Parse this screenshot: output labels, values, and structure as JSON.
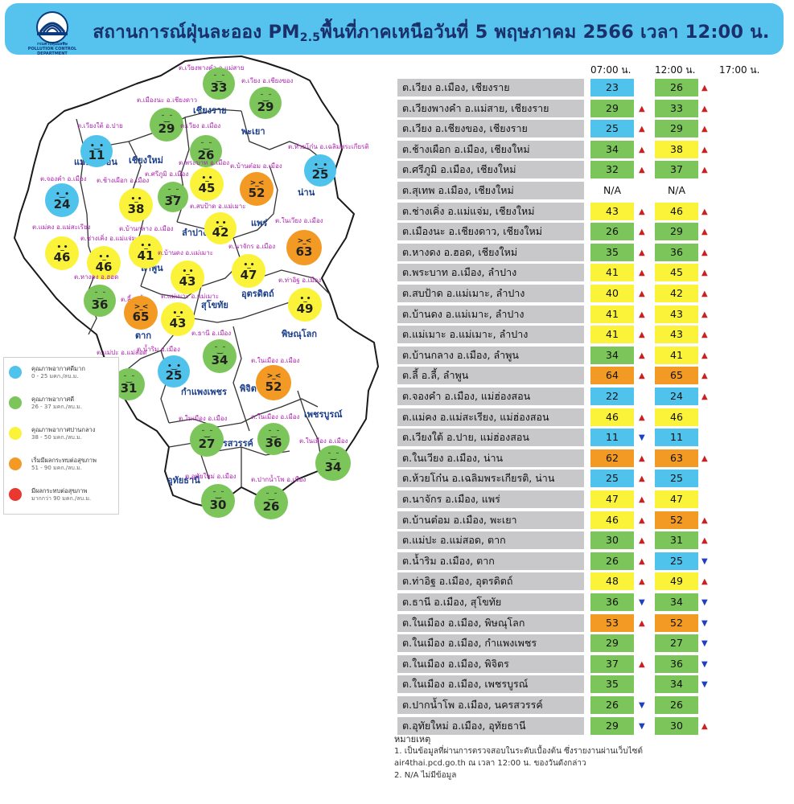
{
  "header": {
    "title_main": "สถานการณ์ฝุ่นละออง PM",
    "title_sub": "2.5",
    "title_rest": "พื้นที่ภาคเหนือวันที่ 5 พฤษภาคม 2566 เวลา 12:00 น.",
    "logo_text_1": "กรมควบคุมมลพิษ",
    "logo_text_2": "POLLUTION CONTROL DEPARTMENT"
  },
  "colors": {
    "blue": "#4fc3ec",
    "green": "#7bc55a",
    "yellow": "#fbf33a",
    "orange": "#f29a24",
    "red": "#e8382f",
    "row_gray": "#c8c8ca",
    "arrow_up": "#cc1f1f",
    "arrow_down": "#1d3fc0"
  },
  "legend": [
    {
      "label": "คุณภาพอากาศดีมาก",
      "range": "0 - 25 มคก./ลบ.ม.",
      "color": "#4fc3ec"
    },
    {
      "label": "คุณภาพอากาศดี",
      "range": "26 - 37 มคก./ลบ.ม.",
      "color": "#7bc55a"
    },
    {
      "label": "คุณภาพอากาศปานกลาง",
      "range": "38 - 50 มคก./ลบ.ม.",
      "color": "#fbf33a"
    },
    {
      "label": "เริ่มมีผลกระทบต่อสุขภาพ",
      "range": "51 - 90 มคก./ลบ.ม.",
      "color": "#f29a24"
    },
    {
      "label": "มีผลกระทบต่อสุขภาพ",
      "range": "มากกว่า 90 มคก./ลบ.ม.",
      "color": "#e8382f"
    }
  ],
  "provinces": [
    "แม่ฮ่องสอน",
    "เชียงใหม่",
    "เชียงราย",
    "พะเยา",
    "น่าน",
    "ลำปาง",
    "แพร่",
    "ลำพูน",
    "อุตรดิตถ์",
    "สุโขทัย",
    "ตาก",
    "พิษณุโลก",
    "กำแพงเพชร",
    "พิจิตร",
    "เพชรบูรณ์",
    "นครสวรรค์",
    "อุทัยธานี"
  ],
  "map_stations": [
    {
      "name": "ต.เวียงพางคำ อ.แม่สาย",
      "value": "33",
      "level": "green"
    },
    {
      "name": "ต.เวียง อ.เชียงของ",
      "value": "29",
      "level": "green"
    },
    {
      "name": "ต.เมืองนะ อ.เชียงดาว",
      "value": "29",
      "level": "green"
    },
    {
      "name": "ต.เวียง อ.เมือง",
      "value": "26",
      "level": "green"
    },
    {
      "name": "ต.เวียงใต้ อ.ปาย",
      "value": "11",
      "level": "blue"
    },
    {
      "name": "ต.ห้วยโก๋น อ.เฉลิมพระเกียรติ",
      "value": "25",
      "level": "blue"
    },
    {
      "name": "ต.พระบาท อ.เมือง",
      "value": "45",
      "level": "yellow"
    },
    {
      "name": "ต.บ้านต๋อม อ.เมือง",
      "value": "52",
      "level": "orange"
    },
    {
      "name": "ต.จองคำ อ.เมือง",
      "value": "24",
      "level": "blue"
    },
    {
      "name": "ต.ช้างเผือก อ.เมือง",
      "value": "38",
      "level": "yellow"
    },
    {
      "name": "ต.ศรีภูมิ อ.เมือง",
      "value": "37",
      "level": "green"
    },
    {
      "name": "ต.สบป้าด อ.แม่เมาะ",
      "value": "42",
      "level": "yellow"
    },
    {
      "name": "ต.ในเวียง อ.เมือง",
      "value": "63",
      "level": "orange"
    },
    {
      "name": "ต.แม่คง อ.แม่สะเรียง",
      "value": "46",
      "level": "yellow"
    },
    {
      "name": "ต.ช่างเคิ่ง อ.แม่แจ่ม",
      "value": "46",
      "level": "yellow"
    },
    {
      "name": "ต.บ้านกลาง อ.เมือง",
      "value": "41",
      "level": "yellow"
    },
    {
      "name": "ต.บ้านดง อ.แม่เมาะ",
      "value": "43",
      "level": "yellow"
    },
    {
      "name": "ต.นาจักร อ.เมือง",
      "value": "47",
      "level": "yellow"
    },
    {
      "name": "ต.หางดง อ.ฮอด",
      "value": "36",
      "level": "green"
    },
    {
      "name": "ต.ลี้ อ.ลี้",
      "value": "65",
      "level": "orange"
    },
    {
      "name": "ต.แม่เมาะ อ.แม่เมาะ",
      "value": "43",
      "level": "yellow"
    },
    {
      "name": "ต.ท่าอิฐ อ.เมือง",
      "value": "49",
      "level": "yellow"
    },
    {
      "name": "ต.ธานี อ.เมือง",
      "value": "34",
      "level": "green"
    },
    {
      "name": "ต.น้ำริม อ.เมือง",
      "value": "25",
      "level": "blue"
    },
    {
      "name": "ต.แม่ปะ อ.แม่สอด",
      "value": "31",
      "level": "green"
    },
    {
      "name": "ต.ในเมือง อ.เมือง",
      "value": "52",
      "level": "orange"
    },
    {
      "name": "ต.ในเมือง อ.เมือง",
      "value": "27",
      "level": "green"
    },
    {
      "name": "ต.ในเมือง อ.เมือง",
      "value": "36",
      "level": "green"
    },
    {
      "name": "ต.ในเมือง อ.เมือง",
      "value": "34",
      "level": "green"
    },
    {
      "name": "ต.อุทัยใหม่ อ.เมือง",
      "value": "30",
      "level": "green"
    },
    {
      "name": "ต.ปากน้ำโพ อ.เมือง",
      "value": "26",
      "level": "green"
    }
  ],
  "table": {
    "headers": [
      "07:00 น.",
      "12:00 น.",
      "17:00 น."
    ],
    "rows": [
      {
        "name": "ต.เวียง อ.เมือง, เชียงราย",
        "v07": "23",
        "l07": "blue",
        "a07": "",
        "v12": "26",
        "l12": "green",
        "a12": "up"
      },
      {
        "name": "ต.เวียงพางคำ อ.แม่สาย, เชียงราย",
        "v07": "29",
        "l07": "green",
        "a07": "up",
        "v12": "33",
        "l12": "green",
        "a12": "up"
      },
      {
        "name": "ต.เวียง อ.เชียงของ, เชียงราย",
        "v07": "25",
        "l07": "blue",
        "a07": "up",
        "v12": "29",
        "l12": "green",
        "a12": "up"
      },
      {
        "name": "ต.ช้างเผือก อ.เมือง, เชียงใหม่",
        "v07": "34",
        "l07": "green",
        "a07": "up",
        "v12": "38",
        "l12": "yellow",
        "a12": "up"
      },
      {
        "name": "ต.ศรีภูมิ อ.เมือง, เชียงใหม่",
        "v07": "32",
        "l07": "green",
        "a07": "up",
        "v12": "37",
        "l12": "green",
        "a12": "up"
      },
      {
        "name": "ต.สุเทพ อ.เมือง, เชียงใหม่",
        "v07": "N/A",
        "l07": "none",
        "a07": "",
        "v12": "N/A",
        "l12": "none",
        "a12": ""
      },
      {
        "name": "ต.ช่างเคิ่ง อ.แม่แจ่ม, เชียงใหม่",
        "v07": "43",
        "l07": "yellow",
        "a07": "up",
        "v12": "46",
        "l12": "yellow",
        "a12": "up"
      },
      {
        "name": "ต.เมืองนะ อ.เชียงดาว, เชียงใหม่",
        "v07": "26",
        "l07": "green",
        "a07": "up",
        "v12": "29",
        "l12": "green",
        "a12": "up"
      },
      {
        "name": "ต.หางดง อ.ฮอด, เชียงใหม่",
        "v07": "35",
        "l07": "green",
        "a07": "up",
        "v12": "36",
        "l12": "green",
        "a12": "up"
      },
      {
        "name": "ต.พระบาท อ.เมือง, ลำปาง",
        "v07": "41",
        "l07": "yellow",
        "a07": "up",
        "v12": "45",
        "l12": "yellow",
        "a12": "up"
      },
      {
        "name": "ต.สบป้าด อ.แม่เมาะ, ลำปาง",
        "v07": "40",
        "l07": "yellow",
        "a07": "up",
        "v12": "42",
        "l12": "yellow",
        "a12": "up"
      },
      {
        "name": "ต.บ้านดง อ.แม่เมาะ, ลำปาง",
        "v07": "41",
        "l07": "yellow",
        "a07": "up",
        "v12": "43",
        "l12": "yellow",
        "a12": "up"
      },
      {
        "name": "ต.แม่เมาะ อ.แม่เมาะ, ลำปาง",
        "v07": "41",
        "l07": "yellow",
        "a07": "up",
        "v12": "43",
        "l12": "yellow",
        "a12": "up"
      },
      {
        "name": "ต.บ้านกลาง อ.เมือง, ลำพูน",
        "v07": "34",
        "l07": "green",
        "a07": "up",
        "v12": "41",
        "l12": "yellow",
        "a12": "up"
      },
      {
        "name": "ต.ลี้ อ.ลี้, ลำพูน",
        "v07": "64",
        "l07": "orange",
        "a07": "up",
        "v12": "65",
        "l12": "orange",
        "a12": "up"
      },
      {
        "name": "ต.จองคำ อ.เมือง, แม่ฮ่องสอน",
        "v07": "22",
        "l07": "blue",
        "a07": "",
        "v12": "24",
        "l12": "blue",
        "a12": "up"
      },
      {
        "name": "ต.แม่คง อ.แม่สะเรียง, แม่ฮ่องสอน",
        "v07": "46",
        "l07": "yellow",
        "a07": "up",
        "v12": "46",
        "l12": "yellow",
        "a12": ""
      },
      {
        "name": "ต.เวียงใต้ อ.ปาย, แม่ฮ่องสอน",
        "v07": "11",
        "l07": "blue",
        "a07": "down",
        "v12": "11",
        "l12": "blue",
        "a12": ""
      },
      {
        "name": "ต.ในเวียง อ.เมือง, น่าน",
        "v07": "62",
        "l07": "orange",
        "a07": "up",
        "v12": "63",
        "l12": "orange",
        "a12": "up"
      },
      {
        "name": "ต.ห้วยโก๋น อ.เฉลิมพระเกียรติ, น่าน",
        "v07": "25",
        "l07": "blue",
        "a07": "up",
        "v12": "25",
        "l12": "blue",
        "a12": ""
      },
      {
        "name": "ต.นาจักร อ.เมือง, แพร่",
        "v07": "47",
        "l07": "yellow",
        "a07": "up",
        "v12": "47",
        "l12": "yellow",
        "a12": ""
      },
      {
        "name": "ต.บ้านต๋อม อ.เมือง, พะเยา",
        "v07": "46",
        "l07": "yellow",
        "a07": "up",
        "v12": "52",
        "l12": "orange",
        "a12": "up"
      },
      {
        "name": "ต.แม่ปะ อ.แม่สอด, ตาก",
        "v07": "30",
        "l07": "green",
        "a07": "up",
        "v12": "31",
        "l12": "green",
        "a12": "up"
      },
      {
        "name": "ต.น้ำริม อ.เมือง, ตาก",
        "v07": "26",
        "l07": "green",
        "a07": "up",
        "v12": "25",
        "l12": "blue",
        "a12": "down"
      },
      {
        "name": "ต.ท่าอิฐ อ.เมือง, อุตรดิตถ์",
        "v07": "48",
        "l07": "yellow",
        "a07": "up",
        "v12": "49",
        "l12": "yellow",
        "a12": "up"
      },
      {
        "name": "ต.ธานี อ.เมือง, สุโขทัย",
        "v07": "36",
        "l07": "green",
        "a07": "down",
        "v12": "34",
        "l12": "green",
        "a12": "down"
      },
      {
        "name": "ต.ในเมือง อ.เมือง, พิษณุโลก",
        "v07": "53",
        "l07": "orange",
        "a07": "up",
        "v12": "52",
        "l12": "orange",
        "a12": "down"
      },
      {
        "name": "ต.ในเมือง อ.เมือง, กำแพงเพชร",
        "v07": "29",
        "l07": "green",
        "a07": "",
        "v12": "27",
        "l12": "green",
        "a12": "down"
      },
      {
        "name": "ต.ในเมือง อ.เมือง, พิจิตร",
        "v07": "37",
        "l07": "green",
        "a07": "up",
        "v12": "36",
        "l12": "green",
        "a12": "down"
      },
      {
        "name": "ต.ในเมือง อ.เมือง, เพชรบูรณ์",
        "v07": "35",
        "l07": "green",
        "a07": "",
        "v12": "34",
        "l12": "green",
        "a12": "down"
      },
      {
        "name": "ต.ปากน้ำโพ อ.เมือง, นครสวรรค์",
        "v07": "26",
        "l07": "green",
        "a07": "down",
        "v12": "26",
        "l12": "green",
        "a12": ""
      },
      {
        "name": "ต.อุทัยใหม่ อ.เมือง, อุทัยธานี",
        "v07": "29",
        "l07": "green",
        "a07": "down",
        "v12": "30",
        "l12": "green",
        "a12": "up"
      }
    ]
  },
  "notes": {
    "title": "หมายเหตุ",
    "line1": "1. เป็นข้อมูลที่ผ่านการตรวจสอบในระดับเบื้องต้น  ซึ่งรายงานผ่านเว็บไซต์",
    "line2": "air4thai.pcd.go.th  ณ  เวลา  12:00  น.  ของวันดังกล่าว",
    "line3": "2.  N/A  ไม่มีข้อมูล"
  }
}
